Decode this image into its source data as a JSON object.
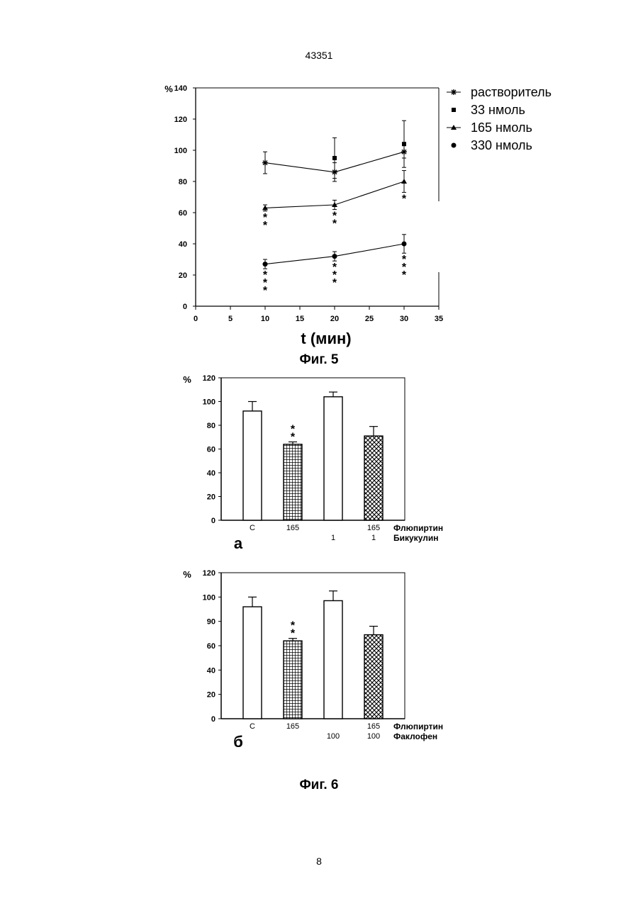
{
  "page": {
    "number_top": "43351",
    "number_bottom": "8",
    "fig5_caption": "Фиг. 5",
    "fig6_caption": "Фиг. 6"
  },
  "chart_data": [
    {
      "id": "fig5",
      "type": "line",
      "ylabel": "%",
      "xlabel": "t (мин)",
      "xlim": [
        0,
        35
      ],
      "ylim": [
        0,
        140
      ],
      "xticks": [
        0,
        5,
        10,
        15,
        20,
        25,
        30,
        35
      ],
      "yticks": [
        0,
        20,
        40,
        60,
        80,
        100,
        120,
        140
      ],
      "legend_position": "top-right",
      "series": [
        {
          "name": "растворитель",
          "marker": "star",
          "line": true,
          "x": [
            10,
            20,
            30
          ],
          "y": [
            92,
            86,
            99
          ],
          "err": [
            7,
            6,
            4
          ],
          "stars": [
            "",
            "",
            ""
          ]
        },
        {
          "name": "33 нмоль",
          "marker": "square",
          "line": false,
          "x": [
            20,
            30
          ],
          "y": [
            95,
            104
          ],
          "err": [
            13,
            15
          ],
          "stars": [
            "",
            ""
          ]
        },
        {
          "name": "165 нмоль",
          "marker": "triangle",
          "line": true,
          "x": [
            10,
            20,
            30
          ],
          "y": [
            63,
            65,
            80
          ],
          "err": [
            2,
            3,
            7
          ],
          "stars": [
            "**",
            "**",
            "*"
          ]
        },
        {
          "name": "330 нмоль",
          "marker": "circle",
          "line": true,
          "x": [
            10,
            20,
            30
          ],
          "y": [
            27,
            32,
            40
          ],
          "err": [
            3,
            3,
            6
          ],
          "stars": [
            "***",
            "***",
            "***"
          ]
        }
      ]
    },
    {
      "id": "fig6a",
      "type": "bar",
      "panel_label": "а",
      "ylabel": "%",
      "ylim": [
        0,
        120
      ],
      "yticks": [
        0,
        20,
        40,
        60,
        80,
        100,
        120
      ],
      "row1_label": "Флюпиртин",
      "row2_label": "Бикукулин",
      "bars": [
        {
          "value": 92,
          "err": 8,
          "fill": "white",
          "row1": "C",
          "row2": "",
          "stars": ""
        },
        {
          "value": 64,
          "err": 2,
          "fill": "grid",
          "row1": "165",
          "row2": "",
          "stars": "**"
        },
        {
          "value": 104,
          "err": 4,
          "fill": "white",
          "row1": "",
          "row2": "1",
          "stars": ""
        },
        {
          "value": 71,
          "err": 8,
          "fill": "crosshatch",
          "row1": "165",
          "row2": "1",
          "stars": ""
        }
      ]
    },
    {
      "id": "fig6b",
      "type": "bar",
      "panel_label": "б",
      "ylabel": "%",
      "ylim": [
        0,
        120
      ],
      "yticks": [
        0,
        20,
        40,
        60,
        90,
        100,
        120
      ],
      "row1_label": "Флюпиртин",
      "row2_label": "Факлофен",
      "bars": [
        {
          "value": 92,
          "err": 8,
          "fill": "white",
          "row1": "C",
          "row2": "",
          "stars": ""
        },
        {
          "value": 64,
          "err": 2,
          "fill": "grid",
          "row1": "165",
          "row2": "",
          "stars": "**"
        },
        {
          "value": 97,
          "err": 8,
          "fill": "white",
          "row1": "",
          "row2": "100",
          "stars": ""
        },
        {
          "value": 69,
          "err": 7,
          "fill": "crosshatch",
          "row1": "165",
          "row2": "100",
          "stars": ""
        }
      ]
    }
  ]
}
